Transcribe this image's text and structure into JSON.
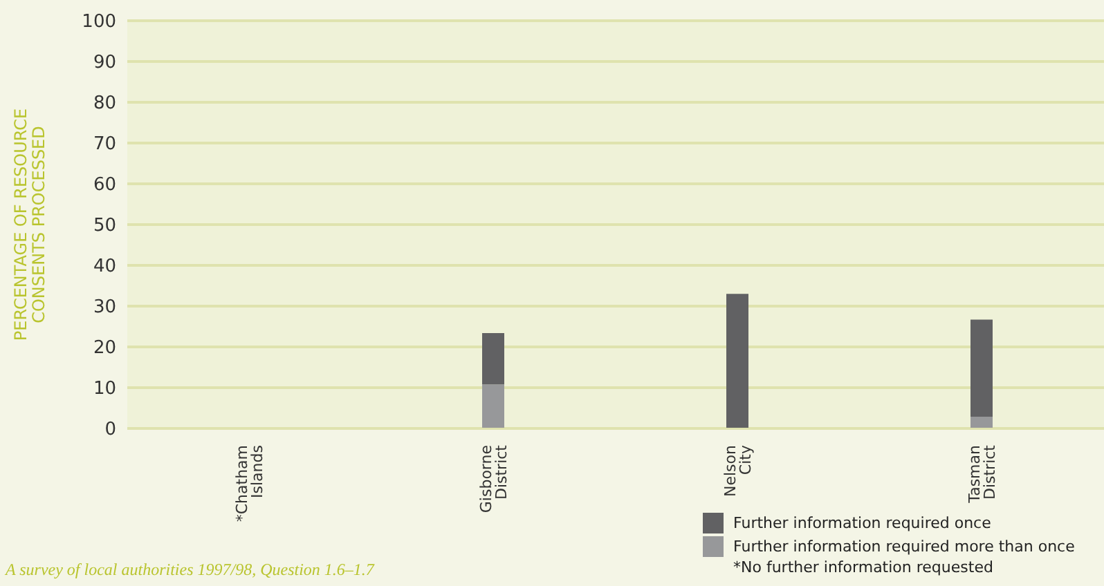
{
  "chart_data": {
    "type": "bar",
    "stacked": true,
    "ylabel": "PERCENTAGE OF RESOURCE CONSENTS PROCESSED",
    "categories": [
      "*Chatham Islands",
      "Gisborne District",
      "Nelson City",
      "Tasman District"
    ],
    "series": [
      {
        "name": "Further information required more than once",
        "color": "#97989a",
        "values": [
          0,
          10.8,
          0,
          2.9
        ]
      },
      {
        "name": "Further information required once",
        "color": "#616163",
        "values": [
          0,
          12.6,
          33,
          23.8
        ]
      }
    ],
    "ylim": [
      0,
      100
    ],
    "yticks": [
      0,
      10,
      20,
      30,
      40,
      50,
      60,
      70,
      80,
      90,
      100
    ],
    "grid": "y",
    "legend": "bottom right",
    "annotations": [
      "*No further information requested",
      "A survey of local authorities 1997/98, Question 1.6–1.7"
    ]
  }
}
